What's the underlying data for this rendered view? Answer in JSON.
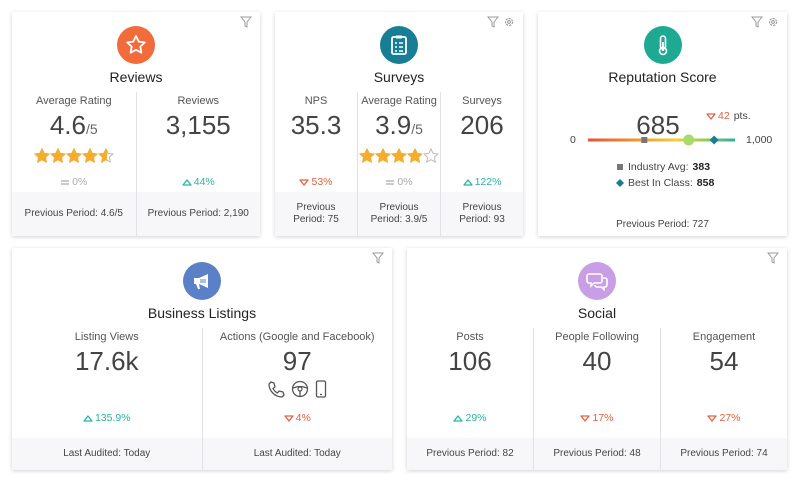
{
  "cards": [
    {
      "title": "Reviews",
      "icon": "star",
      "color": "#f26b3a",
      "metrics": [
        {
          "label": "Average Rating",
          "value": "4.6",
          "suffix": "/5",
          "stars": true,
          "change": "0%",
          "trend": "flat",
          "footer": "Previous Period: 4.6/5"
        },
        {
          "label": "Reviews",
          "value": "3,155",
          "change": "44%",
          "trend": "up",
          "footer": "Previous Period: 2,190"
        }
      ]
    },
    {
      "title": "Surveys",
      "icon": "clipboard",
      "color": "#177e96",
      "gear": true,
      "metrics": [
        {
          "label": "NPS",
          "value": "35.3",
          "change": "53%",
          "trend": "down",
          "footer": "Previous Period: 75"
        },
        {
          "label": "Average Rating",
          "value": "3.9",
          "suffix": "/5",
          "stars": true,
          "change": "0%",
          "trend": "flat",
          "footer": "Previous Period: 3.9/5"
        },
        {
          "label": "Surveys",
          "value": "206",
          "change": "122%",
          "trend": "up",
          "footer": "Previous Period: 93"
        }
      ]
    },
    {
      "title": "Reputation Score",
      "icon": "thermometer",
      "color": "#1eaa92",
      "gear": true,
      "score": {
        "value": "685",
        "change": "42",
        "unit": "pts.",
        "trend": "down",
        "min": "0",
        "max": "1,000",
        "industry_label": "Industry Avg:",
        "industry": "383",
        "best_label": "Best In Class:",
        "best": "858",
        "footer": "Previous Period: 727"
      }
    },
    {
      "title": "Business Listings",
      "icon": "megaphone",
      "color": "#5a80c8",
      "metrics": [
        {
          "label": "Listing Views",
          "value": "17.6k",
          "change": "135.9%",
          "trend": "up",
          "footer": "Last Audited: Today"
        },
        {
          "label": "Actions (Google and Facebook)",
          "value": "97",
          "channels": true,
          "change": "4%",
          "trend": "down",
          "footer": "Last Audited: Today"
        }
      ]
    },
    {
      "title": "Social",
      "icon": "chat",
      "color": "#c89ee6",
      "metrics": [
        {
          "label": "Posts",
          "value": "106",
          "change": "29%",
          "trend": "up",
          "footer": "Previous Period: 82"
        },
        {
          "label": "People Following",
          "value": "40",
          "change": "17%",
          "trend": "down",
          "footer": "Previous Period: 48"
        },
        {
          "label": "Engagement",
          "value": "54",
          "change": "27%",
          "trend": "down",
          "footer": "Previous Period: 74"
        }
      ]
    }
  ]
}
